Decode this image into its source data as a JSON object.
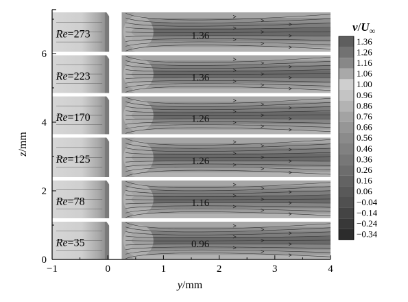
{
  "chart_data": {
    "type": "heatmap",
    "description_free": true,
    "x_axis": {
      "title_var": "y",
      "title_unit": "/mm",
      "range": [
        -1,
        4
      ],
      "ticks": [
        "−1",
        "0",
        "1",
        "2",
        "3",
        "4"
      ]
    },
    "y_axis": {
      "title_var": "z",
      "title_unit": "/mm",
      "range": [
        0,
        7.2
      ],
      "ticks": [
        "0",
        "2",
        "4",
        "6"
      ],
      "tick_values": [
        0,
        2,
        4,
        6
      ]
    },
    "colorbar": {
      "title_var": "v",
      "title_sep": "/",
      "title_base": "U",
      "title_sub": "∞",
      "levels": [
        "1.36",
        "1.26",
        "1.16",
        "1.06",
        "1.00",
        "0.96",
        "0.86",
        "0.76",
        "0.66",
        "0.56",
        "0.46",
        "0.36",
        "0.26",
        "0.16",
        "0.06",
        "−0.04",
        "−0.14",
        "−0.24",
        "−0.34"
      ],
      "level_colors": [
        "#5e5e5e",
        "#727272",
        "#888888",
        "#a9a9a9",
        "#cfcfcf",
        "#c4c4c4",
        "#b3b3b3",
        "#a3a3a3",
        "#969696",
        "#8b8b8b",
        "#818181",
        "#777777",
        "#6d6d6d",
        "#636363",
        "#595959",
        "#505050",
        "#444444",
        "#383838",
        "#2c2c2c"
      ]
    },
    "panels": [
      {
        "re_label": "Re",
        "re_value": "=273",
        "peak_label": "1.36",
        "z_range": [
          6.05,
          7.2
        ]
      },
      {
        "re_label": "Re",
        "re_value": "=223",
        "peak_label": "1.36",
        "z_range": [
          4.85,
          5.95
        ]
      },
      {
        "re_label": "Re",
        "re_value": "=170",
        "peak_label": "1.26",
        "z_range": [
          3.65,
          4.75
        ]
      },
      {
        "re_label": "Re",
        "re_value": "=125",
        "peak_label": "1.26",
        "z_range": [
          2.4,
          3.55
        ]
      },
      {
        "re_label": "Re",
        "re_value": "=78",
        "peak_label": "1.16",
        "z_range": [
          1.2,
          2.3
        ]
      },
      {
        "re_label": "Re",
        "re_value": "=35",
        "peak_label": "0.96",
        "z_range": [
          0.0,
          1.1
        ]
      }
    ]
  }
}
